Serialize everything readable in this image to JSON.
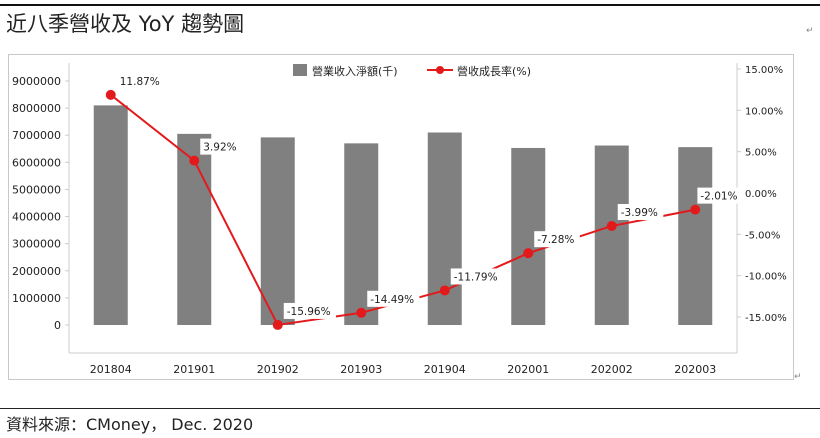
{
  "heading": {
    "title": "近八季營收及 YoY 趨勢圖"
  },
  "source": {
    "text": "資料來源：CMoney， Dec. 2020"
  },
  "colors": {
    "bar": "#808080",
    "line": "#e31a1c",
    "axis": "#cccccc",
    "text": "#222222"
  },
  "chart_data": {
    "type": "bar",
    "categories": [
      "201804",
      "201901",
      "201902",
      "201903",
      "201904",
      "202001",
      "202002",
      "202003"
    ],
    "series": [
      {
        "name": "營業收入淨額(千)",
        "type": "bar",
        "axis": "left",
        "values": [
          8100000,
          7050000,
          6920000,
          6700000,
          7100000,
          6530000,
          6620000,
          6560000
        ]
      },
      {
        "name": "營收成長率(%)",
        "type": "line",
        "axis": "right",
        "values": [
          11.87,
          3.92,
          -15.96,
          -14.49,
          -11.79,
          -7.28,
          -3.99,
          -2.01
        ],
        "labels": [
          "11.87%",
          "3.92%",
          "-15.96%",
          "-14.49%",
          "-11.79%",
          "-7.28%",
          "-3.99%",
          "-2.01%"
        ]
      }
    ],
    "y_left": {
      "ticks": [
        0,
        1000000,
        2000000,
        3000000,
        4000000,
        5000000,
        6000000,
        7000000,
        8000000,
        9000000
      ],
      "ylim": [
        0,
        9000000
      ]
    },
    "y_right": {
      "ticks": [
        15,
        10,
        5,
        0,
        -5,
        -10,
        -15
      ],
      "tick_labels": [
        "15.00%",
        "10.00%",
        "5.00%",
        "0.00%",
        "-5.00%",
        "-10.00%",
        "-15.00%"
      ],
      "ylim": [
        -15.96,
        15
      ]
    },
    "legend": {
      "position": "top"
    },
    "grid": false
  }
}
